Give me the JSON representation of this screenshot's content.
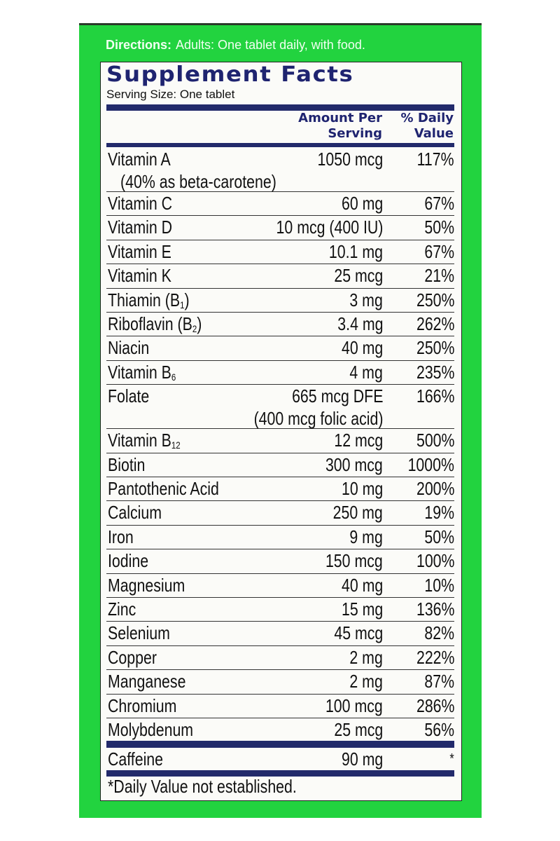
{
  "directions": {
    "label": "Directions:",
    "text": "Adults:  One tablet daily, with food."
  },
  "title": "Supplement Facts",
  "serving_size": "Serving Size: One tablet",
  "columns": {
    "amount_line1": "Amount Per",
    "amount_line2": "Serving",
    "dv_line1": "% Daily",
    "dv_line2": "Value"
  },
  "rows": [
    {
      "name": "Vitamin A",
      "sub": "",
      "suffix": "",
      "note": "(40% as beta-carotene)",
      "amount": "1050 mcg",
      "amount2": "",
      "dv": "117%"
    },
    {
      "name": "Vitamin C",
      "sub": "",
      "suffix": "",
      "note": "",
      "amount": "60 mg",
      "amount2": "",
      "dv": "67%"
    },
    {
      "name": "Vitamin D",
      "sub": "",
      "suffix": "",
      "note": "",
      "amount": "10 mcg (400 IU)",
      "amount2": "",
      "dv": "50%"
    },
    {
      "name": "Vitamin E",
      "sub": "",
      "suffix": "",
      "note": "",
      "amount": "10.1 mg",
      "amount2": "",
      "dv": "67%"
    },
    {
      "name": "Vitamin K",
      "sub": "",
      "suffix": "",
      "note": "",
      "amount": "25 mcg",
      "amount2": "",
      "dv": "21%"
    },
    {
      "name": "Thiamin (B",
      "sub": "1",
      "suffix": ")",
      "note": "",
      "amount": "3 mg",
      "amount2": "",
      "dv": "250%"
    },
    {
      "name": "Riboflavin (B",
      "sub": "2",
      "suffix": ")",
      "note": "",
      "amount": "3.4 mg",
      "amount2": "",
      "dv": "262%"
    },
    {
      "name": "Niacin",
      "sub": "",
      "suffix": "",
      "note": "",
      "amount": "40 mg",
      "amount2": "",
      "dv": "250%"
    },
    {
      "name": "Vitamin B",
      "sub": "6",
      "suffix": "",
      "note": "",
      "amount": "4 mg",
      "amount2": "",
      "dv": "235%"
    },
    {
      "name": "Folate",
      "sub": "",
      "suffix": "",
      "note": "",
      "amount": "665 mcg DFE",
      "amount2": "(400 mcg folic acid)",
      "dv": "166%"
    },
    {
      "name": "Vitamin B",
      "sub": "12",
      "suffix": "",
      "note": "",
      "amount": "12 mcg",
      "amount2": "",
      "dv": "500%"
    },
    {
      "name": "Biotin",
      "sub": "",
      "suffix": "",
      "note": "",
      "amount": "300 mcg",
      "amount2": "",
      "dv": "1000%"
    },
    {
      "name": "Pantothenic Acid",
      "sub": "",
      "suffix": "",
      "note": "",
      "amount": "10 mg",
      "amount2": "",
      "dv": "200%"
    },
    {
      "name": "Calcium",
      "sub": "",
      "suffix": "",
      "note": "",
      "amount": "250 mg",
      "amount2": "",
      "dv": "19%"
    },
    {
      "name": "Iron",
      "sub": "",
      "suffix": "",
      "note": "",
      "amount": "9 mg",
      "amount2": "",
      "dv": "50%"
    },
    {
      "name": "Iodine",
      "sub": "",
      "suffix": "",
      "note": "",
      "amount": "150 mcg",
      "amount2": "",
      "dv": "100%"
    },
    {
      "name": "Magnesium",
      "sub": "",
      "suffix": "",
      "note": "",
      "amount": "40 mg",
      "amount2": "",
      "dv": "10%"
    },
    {
      "name": "Zinc",
      "sub": "",
      "suffix": "",
      "note": "",
      "amount": "15 mg",
      "amount2": "",
      "dv": "136%"
    },
    {
      "name": "Selenium",
      "sub": "",
      "suffix": "",
      "note": "",
      "amount": "45 mcg",
      "amount2": "",
      "dv": "82%"
    },
    {
      "name": "Copper",
      "sub": "",
      "suffix": "",
      "note": "",
      "amount": "2 mg",
      "amount2": "",
      "dv": "222%"
    },
    {
      "name": "Manganese",
      "sub": "",
      "suffix": "",
      "note": "",
      "amount": "2 mg",
      "amount2": "",
      "dv": "87%"
    },
    {
      "name": "Chromium",
      "sub": "",
      "suffix": "",
      "note": "",
      "amount": "100 mcg",
      "amount2": "",
      "dv": "286%"
    },
    {
      "name": "Molybdenum",
      "sub": "",
      "suffix": "",
      "note": "",
      "amount": "25 mcg",
      "amount2": "",
      "dv": "56%"
    }
  ],
  "caffeine": {
    "name": "Caffeine",
    "amount": "90 mg",
    "dv": "*"
  },
  "footnote": "*Daily Value not established.",
  "colors": {
    "package_green": "#22d33f",
    "label_navy": "#1f2470",
    "panel": "#fbfbf8"
  }
}
